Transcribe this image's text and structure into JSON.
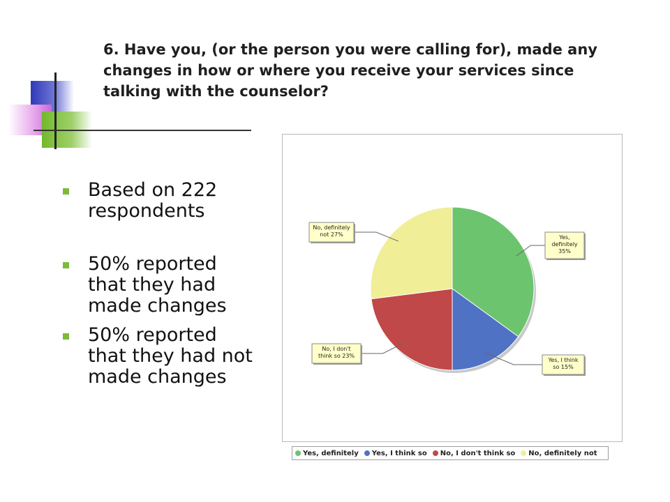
{
  "slide": {
    "title": "6. Have you, (or the person you were calling for), made any changes in how or where you receive your services since talking with the counselor?",
    "bullets": [
      "Based on 222 respondents",
      "50% reported that they had made changes",
      "50% reported that they had not made changes"
    ],
    "accent_colors": {
      "bullet": "#7cbb3a",
      "blue": "#2f39b8",
      "pink": "#d77ee0",
      "green": "#73b82b"
    }
  },
  "chart_data": {
    "type": "pie",
    "slices": [
      {
        "label": "Yes, definitely",
        "value": 35,
        "callout_lines": [
          "Yes,",
          "definitely",
          "35%"
        ],
        "color": "#6cc46f"
      },
      {
        "label": "Yes, I think so",
        "value": 15,
        "callout_lines": [
          "Yes, I think",
          "so   15%"
        ],
        "color": "#4f72c4"
      },
      {
        "label": "No, I don't think so",
        "value": 23,
        "callout_lines": [
          "No, I don't",
          "think so   23%"
        ],
        "color": "#c14848"
      },
      {
        "label": "No, definitely not",
        "value": 27,
        "callout_lines": [
          "No, definitely",
          "not   27%"
        ],
        "color": "#f0ee96"
      }
    ],
    "legend": [
      "Yes, definitely",
      "Yes, I think so",
      "No, I don't think so",
      "No, definitely not"
    ],
    "legend_position": "bottom"
  }
}
